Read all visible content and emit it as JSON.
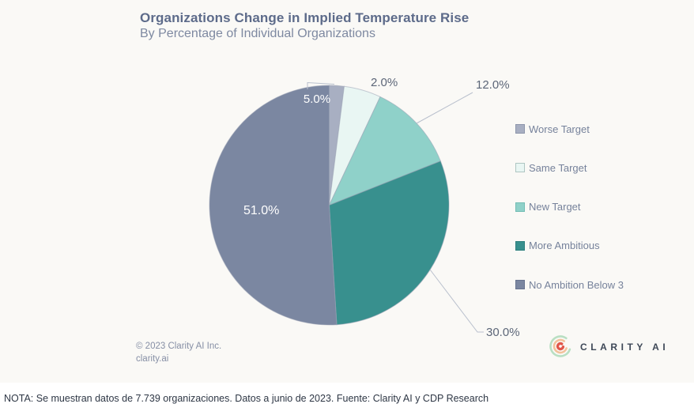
{
  "chart_data": {
    "type": "pie",
    "title": "Organizations Change in Implied Temperature Rise",
    "subtitle": "By Percentage of Individual Organizations",
    "unit": "%",
    "start_angle_deg": 0,
    "direction": "clockwise",
    "legend_position": "right",
    "slices": [
      {
        "label": "Worse Target",
        "value": 2.0,
        "color": "#a8afc2",
        "border": "#8d96ab"
      },
      {
        "label": "Same Target",
        "value": 5.0,
        "color": "#e9f6f3",
        "border": "#aec6c2"
      },
      {
        "label": "New Target",
        "value": 12.0,
        "color": "#8fd1c9",
        "border": "#72bdb4"
      },
      {
        "label": "More Ambitious",
        "value": 30.0,
        "color": "#38908e",
        "border": "#2c7f7d"
      },
      {
        "label": "No Ambition Below 3",
        "value": 51.0,
        "color": "#7b87a1",
        "border": "#68748f"
      }
    ]
  },
  "branding": {
    "copyright_line1": "© 2023 Clarity AI Inc.",
    "copyright_line2": "clarity.ai",
    "logo_text": "CLARITY AI",
    "logo_colors": {
      "outer": "#b9dfc3",
      "middle": "#f2c29c",
      "inner": "#e2574b"
    }
  },
  "footer": {
    "note": "NOTA: Se muestran datos de 7.739 organizaciones. Datos a junio de 2023. Fuente: Clarity AI y CDP Research"
  },
  "style_colors": {
    "background": "#faf9f6",
    "label_dark": "#5c6678",
    "label_light": "#ffffff",
    "leader_line": "#b9c0cd",
    "slice_stroke": "#9aa2b4"
  }
}
